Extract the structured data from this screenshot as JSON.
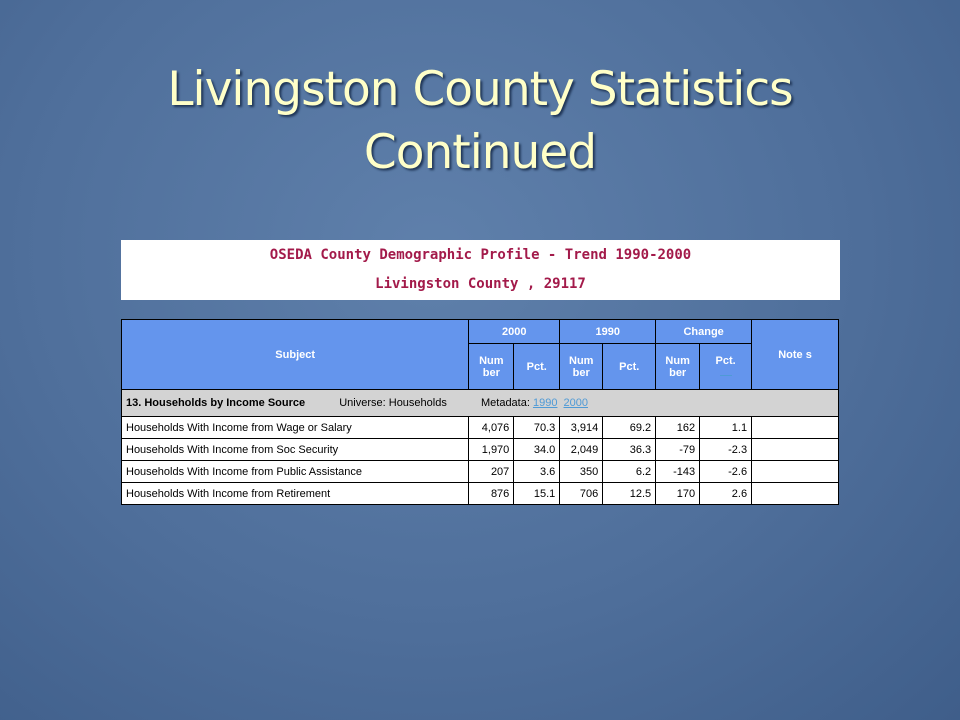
{
  "slide": {
    "title_line1": "Livingston County Statistics",
    "title_line2": "Continued"
  },
  "banner": {
    "line1": "OSEDA County Demographic Profile - Trend 1990-2000",
    "line2": "Livingston County , 29117"
  },
  "table": {
    "headers": {
      "subject": "Subject",
      "y2000": "2000",
      "y1990": "1990",
      "change": "Change",
      "notes": "Note s",
      "num": "Num ber",
      "pct": "Pct.",
      "pct_link": "Pct."
    },
    "section": {
      "title": "13. Households by Income Source",
      "universe": "Universe: Households",
      "metadata_label": "Metadata:",
      "link1990": "1990",
      "link2000": "2000"
    },
    "rows": [
      {
        "subject": "Households With Income from Wage or Salary",
        "n2000": "4,076",
        "p2000": "70.3",
        "n1990": "3,914",
        "p1990": "69.2",
        "nchg": "162",
        "pchg": "1.1",
        "note": ""
      },
      {
        "subject": "Households With Income from Soc Security",
        "n2000": "1,970",
        "p2000": "34.0",
        "n1990": "2,049",
        "p1990": "36.3",
        "nchg": "-79",
        "pchg": "-2.3",
        "note": ""
      },
      {
        "subject": "Households With Income from Public Assistance",
        "n2000": "207",
        "p2000": "3.6",
        "n1990": "350",
        "p1990": "6.2",
        "nchg": "-143",
        "pchg": "-2.6",
        "note": ""
      },
      {
        "subject": "Households With Income from Retirement",
        "n2000": "876",
        "p2000": "15.1",
        "n1990": "706",
        "p1990": "12.5",
        "nchg": "170",
        "pchg": "2.6",
        "note": ""
      }
    ]
  },
  "colors": {
    "title": "#ffffc8",
    "banner_text": "#a31a4a",
    "header_bg": "#6495ed",
    "section_bg": "#d3d3d3",
    "link": "#4f9ad6"
  }
}
